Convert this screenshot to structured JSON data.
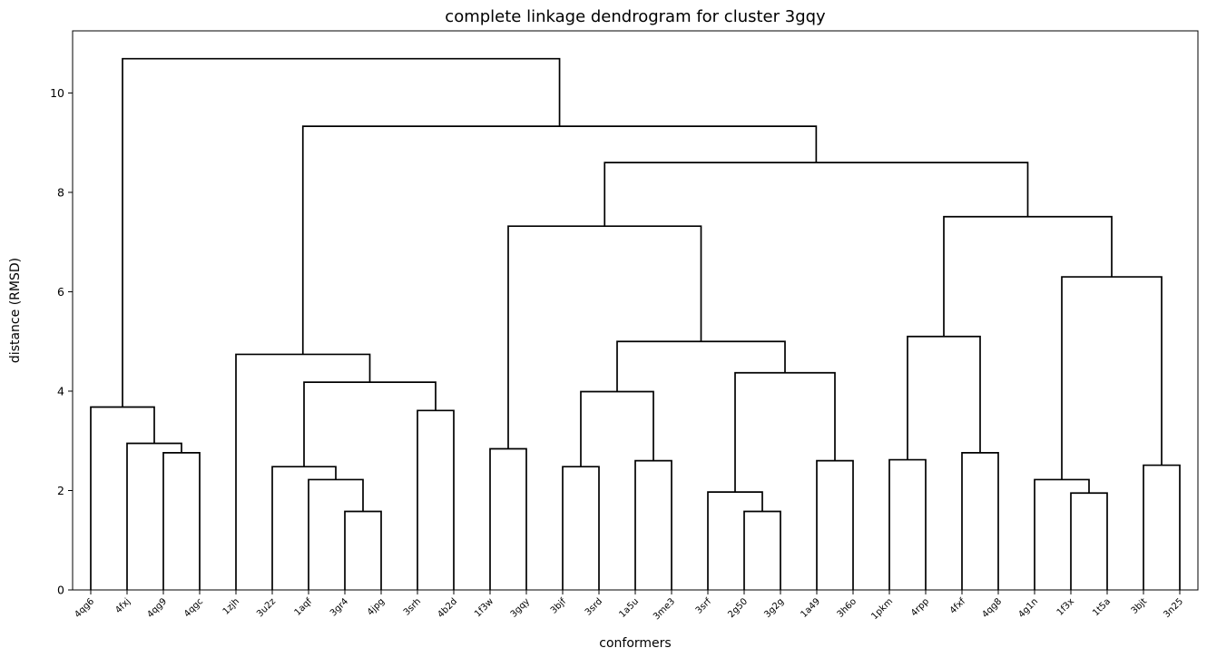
{
  "chart_data": {
    "type": "dendrogram",
    "title": "complete linkage dendrogram for cluster 3gqy",
    "xlabel": "conformers",
    "ylabel": "distance (RMSD)",
    "ylim": [
      0,
      11.25
    ],
    "yticks": [
      0,
      2,
      4,
      6,
      8,
      10
    ],
    "grid": false,
    "line_color": "#000000",
    "leaves": [
      "4qg6",
      "4fxj",
      "4qg9",
      "4qgc",
      "1zjh",
      "3u2z",
      "1aqf",
      "3gr4",
      "4jpg",
      "3srh",
      "4b2d",
      "1f3w",
      "3gqy",
      "3bjf",
      "3srd",
      "1a5u",
      "3me3",
      "3srf",
      "2g50",
      "3g2g",
      "1a49",
      "3h6o",
      "1pkm",
      "4rpp",
      "4fxf",
      "4qg8",
      "4g1n",
      "1f3x",
      "1t5a",
      "3bjt",
      "3n25"
    ],
    "merges": [
      {
        "a": "4qg9",
        "b": "4qgc",
        "height": 2.76
      },
      {
        "a": "4fxj",
        "b": 1,
        "height": 2.95
      },
      {
        "a": "4qg6",
        "b": 2,
        "height": 3.68
      },
      {
        "a": "3gr4",
        "b": "4jpg",
        "height": 1.58
      },
      {
        "a": "1aqf",
        "b": 4,
        "height": 2.22
      },
      {
        "a": "3u2z",
        "b": 5,
        "height": 2.48
      },
      {
        "a": "3srh",
        "b": "4b2d",
        "height": 3.61
      },
      {
        "a": 6,
        "b": 7,
        "height": 4.18
      },
      {
        "a": "1zjh",
        "b": 8,
        "height": 4.74
      },
      {
        "a": "1f3w",
        "b": "3gqy",
        "height": 2.84
      },
      {
        "a": "3bjf",
        "b": "3srd",
        "height": 2.48
      },
      {
        "a": "1a5u",
        "b": "3me3",
        "height": 2.6
      },
      {
        "a": 11,
        "b": 12,
        "height": 3.99
      },
      {
        "a": "2g50",
        "b": "3g2g",
        "height": 1.58
      },
      {
        "a": "3srf",
        "b": 14,
        "height": 1.97
      },
      {
        "a": "1a49",
        "b": "3h6o",
        "height": 2.6
      },
      {
        "a": 15,
        "b": 16,
        "height": 4.37
      },
      {
        "a": 13,
        "b": 17,
        "height": 5.0
      },
      {
        "a": 10,
        "b": 18,
        "height": 7.32
      },
      {
        "a": "1pkm",
        "b": "4rpp",
        "height": 2.62
      },
      {
        "a": "4fxf",
        "b": "4qg8",
        "height": 2.76
      },
      {
        "a": 20,
        "b": 21,
        "height": 5.1
      },
      {
        "a": "1f3x",
        "b": "1t5a",
        "height": 1.95
      },
      {
        "a": "4g1n",
        "b": 23,
        "height": 2.22
      },
      {
        "a": "3bjt",
        "b": "3n25",
        "height": 2.51
      },
      {
        "a": 24,
        "b": 25,
        "height": 6.3
      },
      {
        "a": 22,
        "b": 26,
        "height": 7.51
      },
      {
        "a": 19,
        "b": 27,
        "height": 8.6
      },
      {
        "a": 9,
        "b": 28,
        "height": 9.33
      },
      {
        "a": 3,
        "b": 29,
        "height": 10.69
      }
    ]
  }
}
